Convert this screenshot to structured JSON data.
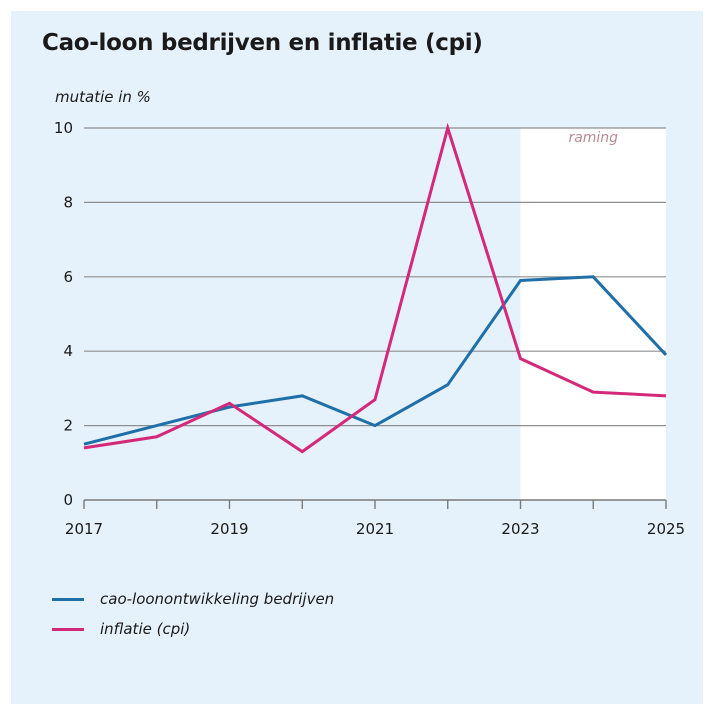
{
  "chart_data": {
    "type": "line",
    "title": "Cao-loon bedrijven en inflatie (cpi)",
    "ylabel": "mutatie in %",
    "xlabel": "",
    "ylim": [
      0,
      10
    ],
    "xlim": [
      2017,
      2025
    ],
    "y_ticks": [
      "0",
      "2",
      "4",
      "6",
      "8",
      "10"
    ],
    "x_ticks": [
      "2017",
      "2019",
      "2021",
      "2023",
      "2025"
    ],
    "x": [
      2017,
      2018,
      2019,
      2020,
      2021,
      2022,
      2023,
      2024,
      2025
    ],
    "series": [
      {
        "name": "cao-loonontwikkeling bedrijven",
        "color": "#1f6fa8",
        "values": [
          1.5,
          2.0,
          2.5,
          2.8,
          2.0,
          3.1,
          5.9,
          6.0,
          3.9
        ]
      },
      {
        "name": "inflatie (cpi)",
        "color": "#d4297a",
        "values": [
          1.4,
          1.7,
          2.6,
          1.3,
          2.7,
          10.0,
          3.8,
          2.9,
          2.8
        ]
      }
    ],
    "forecast": {
      "label": "raming",
      "from": 2023,
      "to": 2025,
      "color": "#ffffff",
      "label_color": "#b88a95"
    },
    "grid": true,
    "legend_position": "bottom-left"
  }
}
